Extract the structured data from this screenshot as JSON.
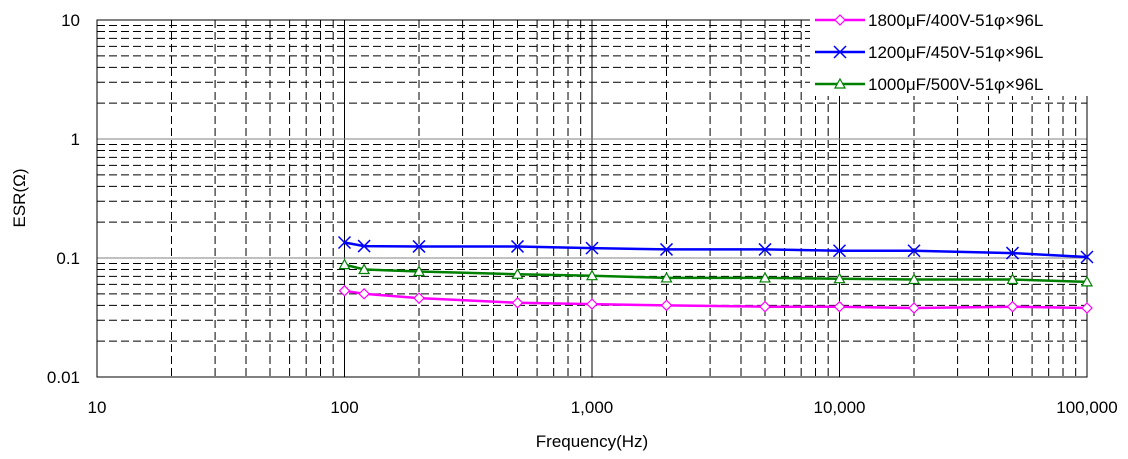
{
  "chart_data": {
    "type": "line",
    "xlabel": "Frequency(Hz)",
    "ylabel": "ESR(Ω)",
    "x_scale": "log",
    "y_scale": "log",
    "xlim": [
      10,
      100000
    ],
    "ylim": [
      0.01,
      10
    ],
    "x_ticks": [
      "10",
      "100",
      "1,000",
      "10,000",
      "100,000"
    ],
    "y_ticks": [
      "0.01",
      "0.1",
      "1",
      "10"
    ],
    "grid": true,
    "legend_position": "top-right",
    "series": [
      {
        "name": "1800μF/400V-51φ×96L",
        "color": "#ff00ff",
        "marker": "diamond",
        "x": [
          100,
          120,
          200,
          500,
          1000,
          2000,
          5000,
          10000,
          20000,
          50000,
          100000
        ],
        "y": [
          0.053,
          0.05,
          0.046,
          0.042,
          0.041,
          0.04,
          0.039,
          0.039,
          0.038,
          0.039,
          0.038
        ]
      },
      {
        "name": "1200μF/450V-51φ×96L",
        "color": "#0000ff",
        "marker": "x",
        "x": [
          100,
          120,
          200,
          500,
          1000,
          2000,
          5000,
          10000,
          20000,
          50000,
          100000
        ],
        "y": [
          0.135,
          0.126,
          0.125,
          0.125,
          0.121,
          0.118,
          0.118,
          0.115,
          0.115,
          0.11,
          0.102
        ]
      },
      {
        "name": "1000μF/500V-51φ×96L",
        "color": "#008000",
        "marker": "triangle",
        "x": [
          100,
          120,
          200,
          500,
          1000,
          2000,
          5000,
          10000,
          20000,
          50000,
          100000
        ],
        "y": [
          0.088,
          0.08,
          0.077,
          0.073,
          0.071,
          0.068,
          0.068,
          0.067,
          0.066,
          0.066,
          0.063
        ]
      }
    ]
  }
}
